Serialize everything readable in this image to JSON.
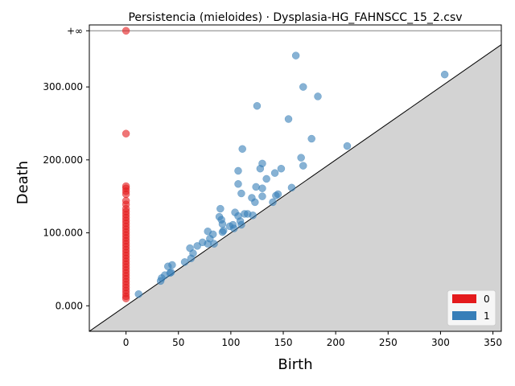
{
  "chart_data": {
    "type": "scatter",
    "title": "Persistencia (mieloides) · Dysplasia-HG_FAHNSCC_15_2.csv",
    "xlabel": "Birth",
    "ylabel": "Death",
    "xlim": [
      -35,
      358
    ],
    "ylim": [
      -35,
      385
    ],
    "x_ticks": [
      0,
      50,
      100,
      150,
      200,
      250,
      300,
      350
    ],
    "x_tick_labels": [
      "0",
      "50",
      "100",
      "150",
      "200",
      "250",
      "300",
      "350"
    ],
    "y_ticks": [
      0,
      100,
      200,
      300
    ],
    "y_tick_labels": [
      "0.000",
      "100.000",
      "200.000",
      "300.000"
    ],
    "infinity_value": 377,
    "infinity_label": "+∞",
    "diagonal": true,
    "grid": false,
    "legend_position": "bottom-right",
    "series": [
      {
        "name": "0",
        "color": "#e41a1c",
        "points": [
          [
            0,
            377
          ],
          [
            0,
            236
          ],
          [
            0,
            164
          ],
          [
            0,
            161
          ],
          [
            0,
            157
          ],
          [
            0,
            153
          ],
          [
            0,
            144
          ],
          [
            0,
            139
          ],
          [
            0,
            133
          ],
          [
            0,
            129
          ],
          [
            0,
            125
          ],
          [
            0,
            121
          ],
          [
            0,
            117
          ],
          [
            0,
            113
          ],
          [
            0,
            109
          ],
          [
            0,
            105
          ],
          [
            0,
            101
          ],
          [
            0,
            97
          ],
          [
            0,
            93
          ],
          [
            0,
            89
          ],
          [
            0,
            85
          ],
          [
            0,
            81
          ],
          [
            0,
            77
          ],
          [
            0,
            73
          ],
          [
            0,
            69
          ],
          [
            0,
            65
          ],
          [
            0,
            61
          ],
          [
            0,
            57
          ],
          [
            0,
            53
          ],
          [
            0,
            49
          ],
          [
            0,
            45
          ],
          [
            0,
            41
          ],
          [
            0,
            37
          ],
          [
            0,
            33
          ],
          [
            0,
            29
          ],
          [
            0,
            25
          ],
          [
            0,
            21
          ],
          [
            0,
            17
          ],
          [
            0,
            13
          ],
          [
            0,
            10
          ]
        ]
      },
      {
        "name": "1",
        "color": "#377eb8",
        "points": [
          [
            162,
            343
          ],
          [
            304,
            317
          ],
          [
            169,
            300
          ],
          [
            183,
            287
          ],
          [
            125,
            274
          ],
          [
            155,
            256
          ],
          [
            177,
            229
          ],
          [
            211,
            219
          ],
          [
            111,
            215
          ],
          [
            167,
            203
          ],
          [
            130,
            195
          ],
          [
            169,
            192
          ],
          [
            148,
            188
          ],
          [
            128,
            188
          ],
          [
            107,
            185
          ],
          [
            142,
            182
          ],
          [
            134,
            174
          ],
          [
            107,
            167
          ],
          [
            124,
            163
          ],
          [
            130,
            161
          ],
          [
            158,
            162
          ],
          [
            110,
            154
          ],
          [
            145,
            153
          ],
          [
            143,
            151
          ],
          [
            130,
            150
          ],
          [
            120,
            148
          ],
          [
            123,
            142
          ],
          [
            140,
            142
          ],
          [
            90,
            133
          ],
          [
            104,
            128
          ],
          [
            113,
            126
          ],
          [
            116,
            126
          ],
          [
            121,
            124
          ],
          [
            107,
            123
          ],
          [
            89,
            122
          ],
          [
            91,
            118
          ],
          [
            109,
            116
          ],
          [
            92,
            112
          ],
          [
            102,
            111
          ],
          [
            110,
            111
          ],
          [
            99,
            109
          ],
          [
            103,
            106
          ],
          [
            93,
            103
          ],
          [
            92,
            101
          ],
          [
            78,
            102
          ],
          [
            83,
            98
          ],
          [
            80,
            92
          ],
          [
            73,
            87
          ],
          [
            78,
            85
          ],
          [
            84,
            85
          ],
          [
            61,
            79
          ],
          [
            68,
            82
          ],
          [
            64,
            72
          ],
          [
            56,
            60
          ],
          [
            62,
            65
          ],
          [
            44,
            56
          ],
          [
            40,
            54
          ],
          [
            43,
            46
          ],
          [
            37,
            42
          ],
          [
            42,
            45
          ],
          [
            34,
            38
          ],
          [
            33,
            34
          ],
          [
            12,
            16
          ]
        ]
      }
    ]
  }
}
